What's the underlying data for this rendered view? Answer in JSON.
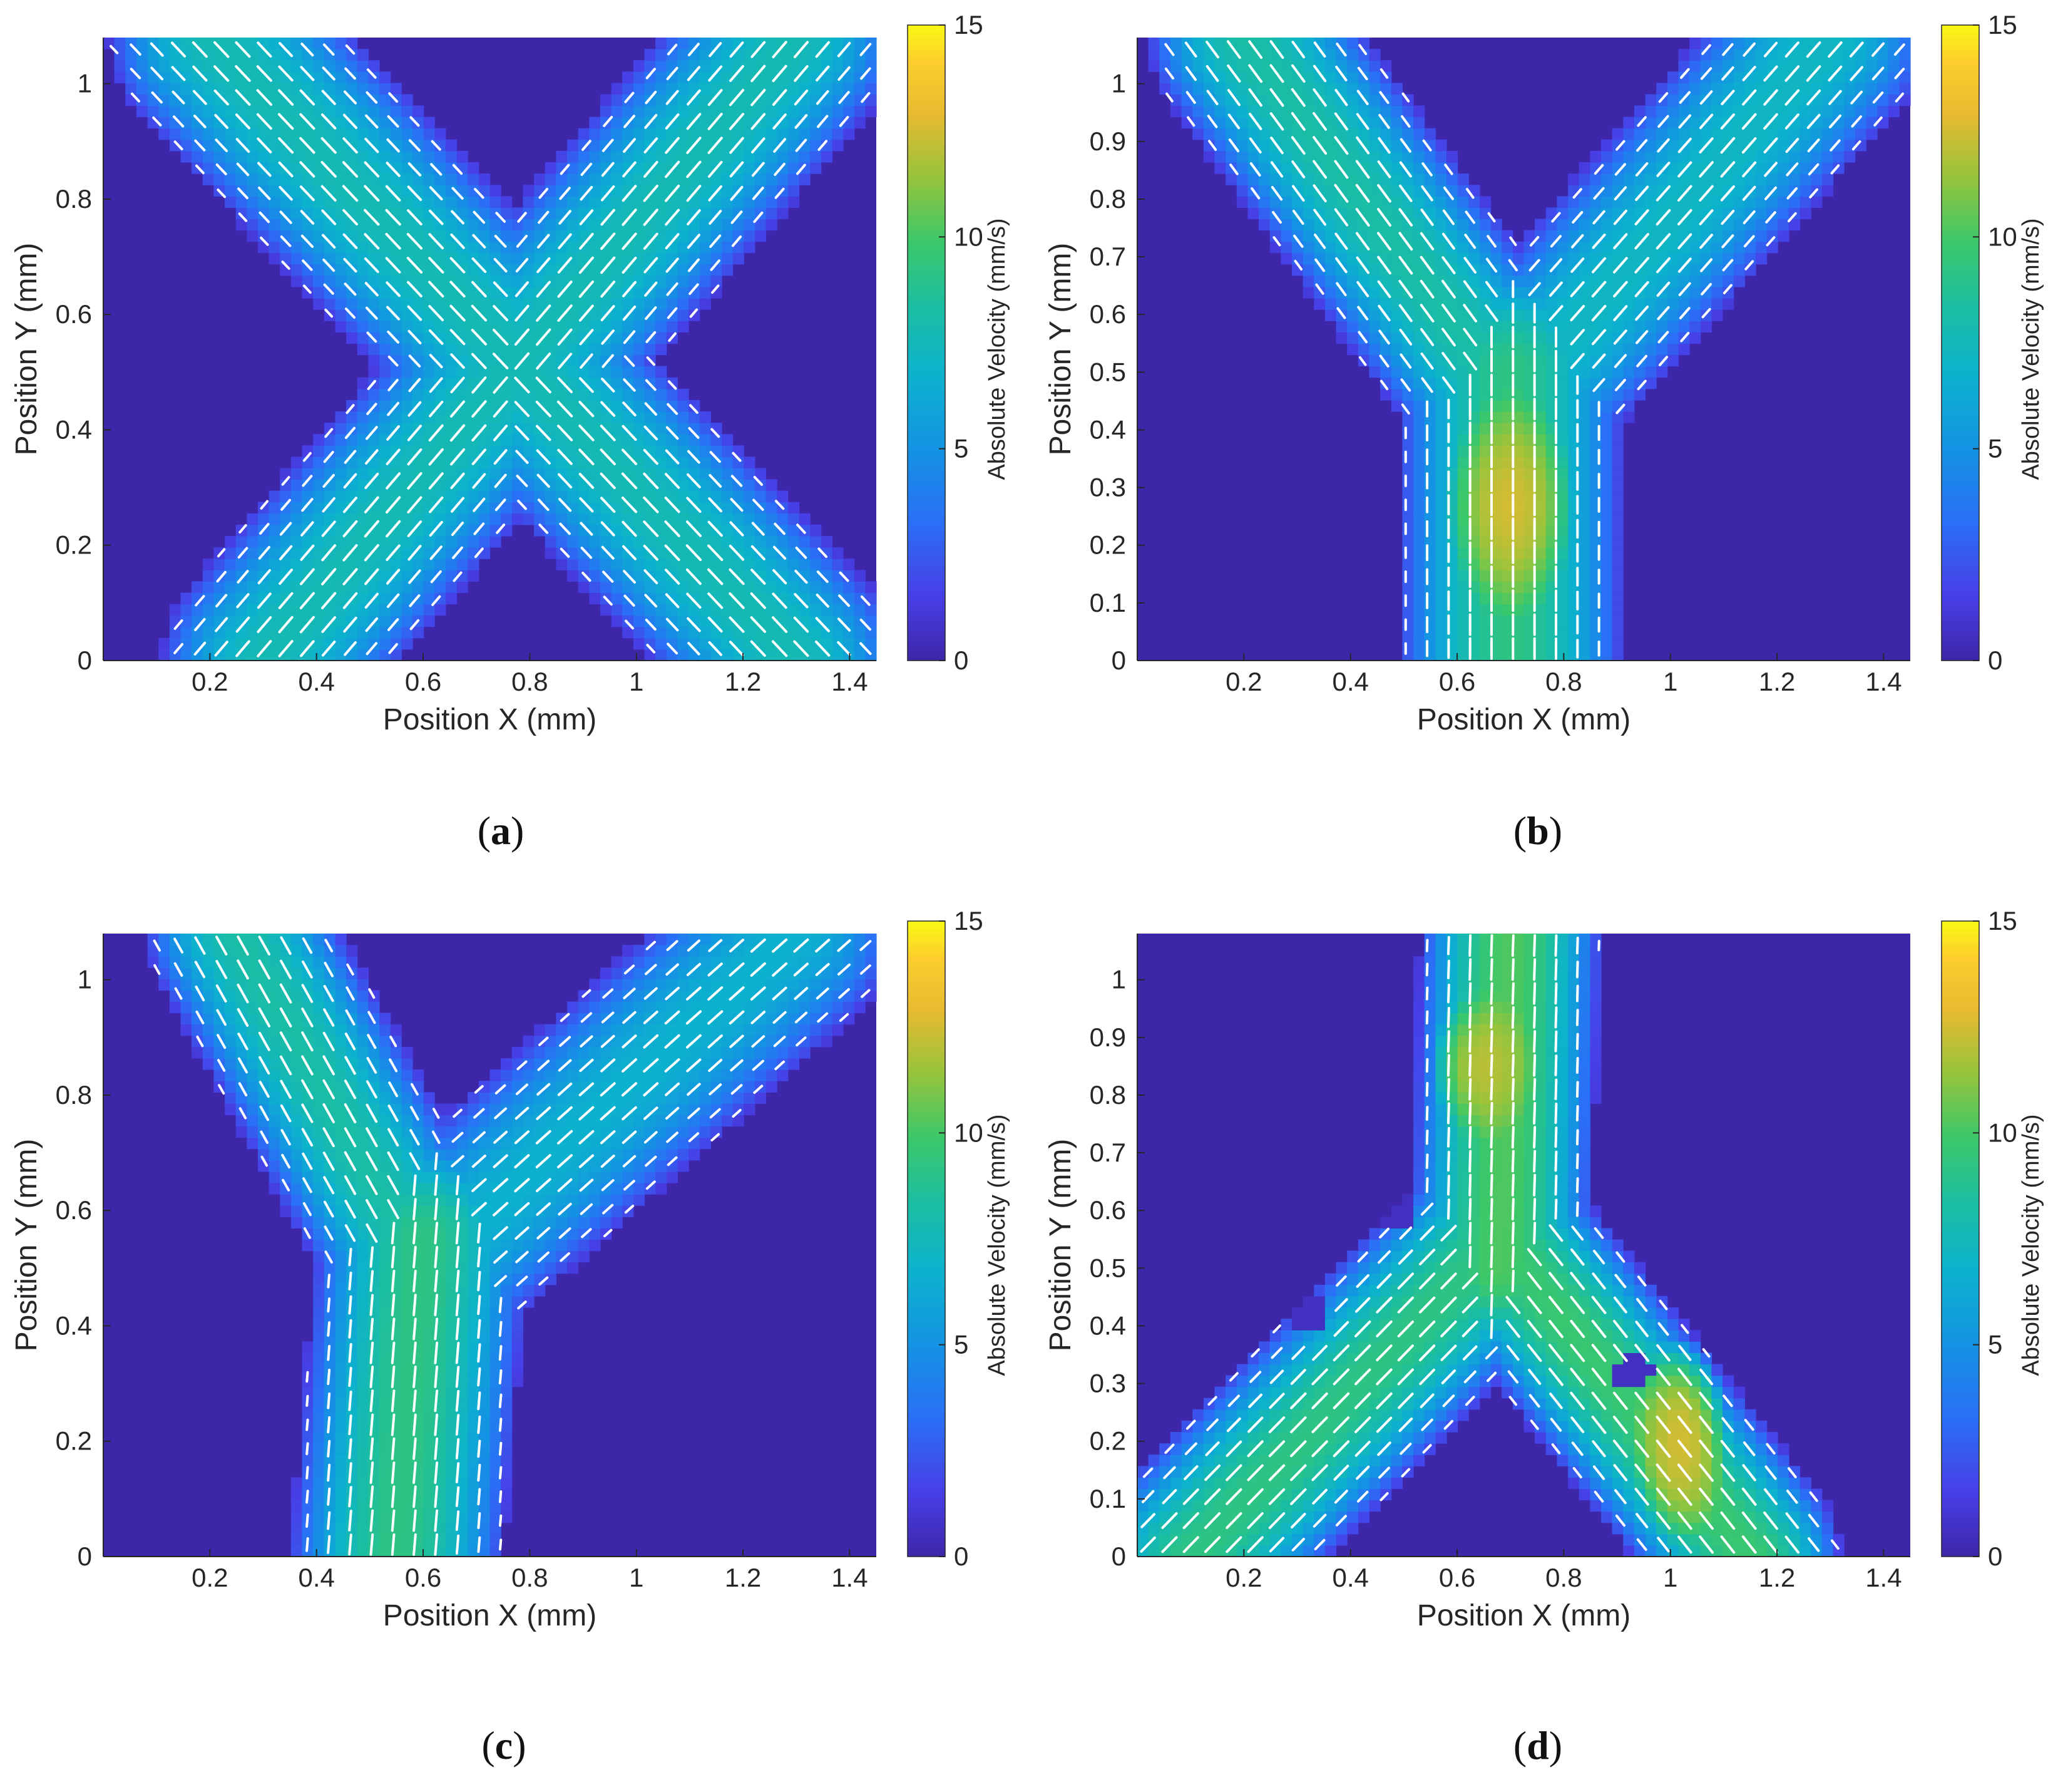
{
  "chart_data": [
    {
      "type": "heatmap",
      "panel": "a",
      "caption_letter": "a",
      "xlabel": "Position X (mm)",
      "ylabel": "Position Y (mm)",
      "xlim": [
        0,
        1.45
      ],
      "ylim": [
        0,
        1.08
      ],
      "xticks": [
        "0.2",
        "0.4",
        "0.6",
        "0.8",
        "1",
        "1.2",
        "1.4"
      ],
      "yticks": [
        "0",
        "0.2",
        "0.4",
        "0.6",
        "0.8",
        "1"
      ],
      "colorbar": {
        "label": "Absolute Velocity (mm/s)",
        "ticks": [
          "0",
          "5",
          "10",
          "15"
        ],
        "range": [
          0,
          15
        ]
      },
      "shape": "X-junction",
      "arms": [
        {
          "from": [
            0.3,
            0.0
          ],
          "to": [
            1.3,
            1.08
          ],
          "width": 0.38,
          "peak_velocity": 6.5
        },
        {
          "from": [
            1.3,
            0.0
          ],
          "to": [
            0.2,
            1.08
          ],
          "width": 0.38,
          "peak_velocity": 6.5
        }
      ],
      "hotspots": [],
      "holes": []
    },
    {
      "type": "heatmap",
      "panel": "b",
      "caption_letter": "b",
      "xlabel": "Position X (mm)",
      "ylabel": "Position Y (mm)",
      "xlim": [
        0,
        1.45
      ],
      "ylim": [
        0,
        1.08
      ],
      "xticks": [
        "0.2",
        "0.4",
        "0.6",
        "0.8",
        "1",
        "1.2",
        "1.4"
      ],
      "yticks": [
        "0",
        "0.1",
        "0.2",
        "0.3",
        "0.4",
        "0.5",
        "0.6",
        "0.7",
        "0.8",
        "0.9",
        "1"
      ],
      "colorbar": {
        "label": "Absolute Velocity (mm/s)",
        "ticks": [
          "0",
          "5",
          "10",
          "15"
        ],
        "range": [
          0,
          15
        ]
      },
      "shape": "Y-junction",
      "arms": [
        {
          "from": [
            0.7,
            0.0
          ],
          "to": [
            0.7,
            0.5
          ],
          "width": 0.42,
          "peak_velocity": 8
        },
        {
          "from": [
            0.7,
            0.45
          ],
          "to": [
            0.2,
            1.08
          ],
          "width": 0.36,
          "peak_velocity": 7
        },
        {
          "from": [
            0.7,
            0.45
          ],
          "to": [
            1.3,
            1.08
          ],
          "width": 0.36,
          "peak_velocity": 6
        }
      ],
      "hotspots": [
        {
          "x": 0.7,
          "y": 0.27,
          "rx": 0.12,
          "ry": 0.2,
          "velocity": 12.5
        }
      ],
      "holes": []
    },
    {
      "type": "heatmap",
      "panel": "c",
      "caption_letter": "c",
      "xlabel": "Position X (mm)",
      "ylabel": "Position Y (mm)",
      "xlim": [
        0,
        1.45
      ],
      "ylim": [
        0,
        1.08
      ],
      "xticks": [
        "0.2",
        "0.4",
        "0.6",
        "0.8",
        "1",
        "1.2",
        "1.4"
      ],
      "yticks": [
        "0",
        "0.2",
        "0.4",
        "0.6",
        "0.8",
        "1"
      ],
      "colorbar": {
        "label": "Absolute Velocity (mm/s)",
        "ticks": [
          "0",
          "5",
          "10",
          "15"
        ],
        "range": [
          0,
          15
        ]
      },
      "shape": "Y-junction (offset)",
      "arms": [
        {
          "from": [
            0.55,
            0.0
          ],
          "to": [
            0.6,
            0.55
          ],
          "width": 0.4,
          "peak_velocity": 8
        },
        {
          "from": [
            0.6,
            0.5
          ],
          "to": [
            0.25,
            1.08
          ],
          "width": 0.34,
          "peak_velocity": 7
        },
        {
          "from": [
            0.6,
            0.5
          ],
          "to": [
            1.3,
            1.08
          ],
          "width": 0.36,
          "peak_velocity": 5.5
        }
      ],
      "hotspots": [],
      "holes": []
    },
    {
      "type": "heatmap",
      "panel": "d",
      "caption_letter": "d",
      "xlabel": "Position X (mm)",
      "ylabel": "Position Y (mm)",
      "xlim": [
        0,
        1.45
      ],
      "ylim": [
        0,
        1.08
      ],
      "xticks": [
        "0.2",
        "0.4",
        "0.6",
        "0.8",
        "1",
        "1.2",
        "1.4"
      ],
      "yticks": [
        "0",
        "0.1",
        "0.2",
        "0.3",
        "0.4",
        "0.5",
        "0.6",
        "0.7",
        "0.8",
        "0.9",
        "1"
      ],
      "colorbar": {
        "label": "Absolute Velocity (mm/s)",
        "ticks": [
          "0",
          "5",
          "10",
          "15"
        ],
        "range": [
          0,
          15
        ]
      },
      "shape": "inverted Y-junction",
      "arms": [
        {
          "from": [
            0.7,
            1.08
          ],
          "to": [
            0.68,
            0.5
          ],
          "width": 0.34,
          "peak_velocity": 9
        },
        {
          "from": [
            0.68,
            0.55
          ],
          "to": [
            0.1,
            0.0
          ],
          "width": 0.36,
          "peak_velocity": 8
        },
        {
          "from": [
            0.68,
            0.55
          ],
          "to": [
            1.15,
            0.0
          ],
          "width": 0.34,
          "peak_velocity": 8.5
        }
      ],
      "hotspots": [
        {
          "x": 0.65,
          "y": 0.85,
          "rx": 0.1,
          "ry": 0.13,
          "velocity": 12
        },
        {
          "x": 1.02,
          "y": 0.2,
          "rx": 0.09,
          "ry": 0.18,
          "velocity": 12.5
        }
      ],
      "holes": [
        {
          "x": 0.48,
          "y": 0.6
        },
        {
          "x": 0.32,
          "y": 0.42
        },
        {
          "x": 0.93,
          "y": 0.32
        }
      ]
    }
  ]
}
